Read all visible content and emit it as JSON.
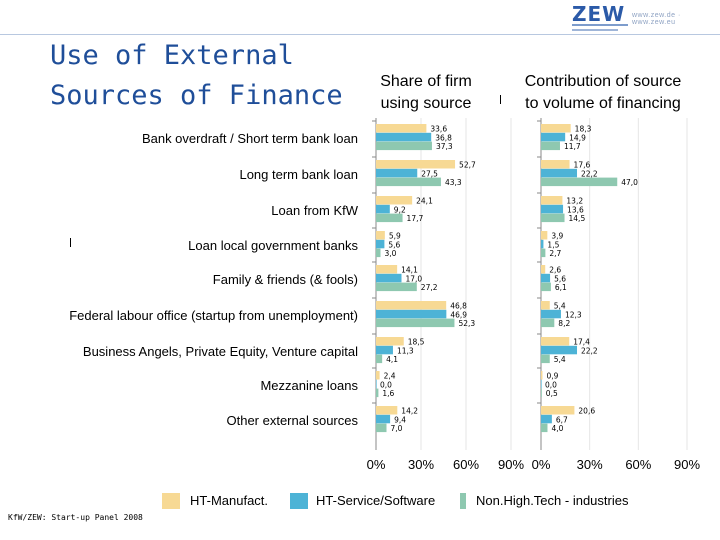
{
  "title": "Use of External\nSources of Finance",
  "source_note": "KfW/ZEW: Start-up Panel 2008",
  "logo": {
    "text": "ZEW",
    "site": "www.zew.de · www.zew.eu"
  },
  "headers": {
    "left": "Share of firm\nusing source",
    "right": "Contribution of source\nto volume of financing"
  },
  "colors": {
    "ht_manufact": "#f7d994",
    "ht_service": "#4db3d6",
    "non_hightech": "#8ec8b0",
    "title": "#1f4e99"
  },
  "chart_data": [
    {
      "type": "bar",
      "orientation": "horizontal",
      "title": "Share of firm using source",
      "categories": [
        "Bank overdraft / Short term bank loan",
        "Long term bank loan",
        "Loan from KfW",
        "Loan local government banks",
        "Family & friends (& fools)",
        "Federal labour office (startup from unemployment)",
        "Business Angels, Private Equity, Venture capital",
        "Mezzanine loans",
        "Other external sources"
      ],
      "series": [
        {
          "name": "HT-Manufact.",
          "values": [
            33.6,
            52.7,
            24.1,
            5.9,
            14.1,
            46.8,
            18.5,
            2.4,
            14.2
          ]
        },
        {
          "name": "HT-Service/Software",
          "values": [
            36.8,
            27.5,
            9.2,
            5.6,
            17.0,
            46.9,
            11.3,
            0.0,
            9.4
          ]
        },
        {
          "name": "Non.High.Tech - industries",
          "values": [
            37.3,
            43.3,
            17.7,
            3.0,
            27.2,
            52.3,
            4.1,
            1.6,
            7.0
          ]
        }
      ],
      "labels": [
        [
          "33,6",
          "36,8",
          "37,3"
        ],
        [
          "52,7",
          "27,5",
          "43,3"
        ],
        [
          "24,1",
          "9,2",
          "17,7"
        ],
        [
          "5,9",
          "5,6",
          "3,0"
        ],
        [
          "14,1",
          "17,0",
          "27,2"
        ],
        [
          "46,8",
          "46,9",
          "52,3"
        ],
        [
          "18,5",
          "11,3",
          "4,1"
        ],
        [
          "2,4",
          "0,0",
          "1,6"
        ],
        [
          "14,2",
          "9,4",
          "7,0"
        ]
      ],
      "xlim": [
        0,
        90
      ],
      "xticks": [
        "0%",
        "30%",
        "60%",
        "90%"
      ]
    },
    {
      "type": "bar",
      "orientation": "horizontal",
      "title": "Contribution of source to volume of financing",
      "categories": [
        "Bank overdraft / Short term bank loan",
        "Long term bank loan",
        "Loan from KfW",
        "Loan local government banks",
        "Family & friends (& fools)",
        "Federal labour office (startup from unemployment)",
        "Business Angels, Private Equity, Venture capital",
        "Mezzanine loans",
        "Other external sources"
      ],
      "series": [
        {
          "name": "HT-Manufact.",
          "values": [
            18.3,
            17.6,
            13.2,
            3.9,
            2.6,
            5.4,
            17.4,
            0.9,
            20.6
          ]
        },
        {
          "name": "HT-Service/Software",
          "values": [
            14.9,
            22.2,
            13.6,
            1.5,
            5.6,
            12.3,
            22.2,
            0.0,
            6.7
          ]
        },
        {
          "name": "Non.High.Tech - industries",
          "values": [
            11.7,
            47.0,
            14.5,
            2.7,
            6.1,
            8.2,
            5.4,
            0.5,
            4.0
          ]
        }
      ],
      "labels": [
        [
          "18,3",
          "14,9",
          "11,7"
        ],
        [
          "17,6",
          "22,2",
          "47,0"
        ],
        [
          "13,2",
          "13,6",
          "14,5"
        ],
        [
          "3,9",
          "1,5",
          "2,7"
        ],
        [
          "2,6",
          "5,6",
          "6,1"
        ],
        [
          "5,4",
          "12,3",
          "8,2"
        ],
        [
          "17,4",
          "22,2",
          "5,4"
        ],
        [
          "0,9",
          "0,0",
          "0,5"
        ],
        [
          "20,6",
          "6,7",
          "4,0"
        ]
      ],
      "xlim": [
        0,
        90
      ],
      "xticks": [
        "0%",
        "30%",
        "60%",
        "90%"
      ]
    }
  ],
  "legend": [
    "HT-Manufact.",
    "HT-Service/Software",
    "Non.High.Tech - industries"
  ]
}
